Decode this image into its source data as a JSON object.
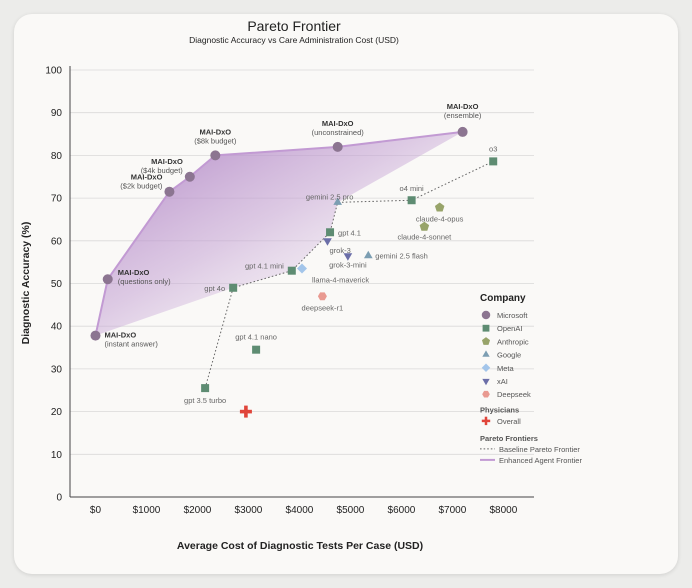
{
  "chart_data": {
    "type": "scatter",
    "title": "Pareto Frontier",
    "subtitle": "Diagnostic Accuracy vs Care Administration Cost (USD)",
    "xlabel": "Average Cost of Diagnostic Tests Per Case (USD)",
    "ylabel": "Diagnostic Accuracy (%)",
    "xlim": [
      -500,
      8600
    ],
    "ylim": [
      0,
      100
    ],
    "x_ticks": [
      0,
      1000,
      2000,
      3000,
      4000,
      5000,
      6000,
      7000,
      8000
    ],
    "x_tick_labels": [
      "$0",
      "$1000",
      "$2000",
      "$3000",
      "$4000",
      "$5000",
      "$6000",
      "$7000",
      "$8000"
    ],
    "y_ticks": [
      0,
      10,
      20,
      30,
      40,
      50,
      60,
      70,
      80,
      90,
      100
    ],
    "grid": "horizontal",
    "legend_position": "right",
    "colors": {
      "Microsoft": "#8c7591",
      "OpenAI": "#5e8c72",
      "Anthropic": "#98a46a",
      "Google": "#7c9eb2",
      "Meta": "#a3c5ea",
      "xAI": "#6b6ea8",
      "Deepseek": "#e99a91",
      "Physicians": "#e0453a",
      "enhanced_frontier": "#c29ad3",
      "fill": "#a97bc0",
      "baseline_frontier": "#666666"
    },
    "points": [
      {
        "label": "MAI-DxO",
        "sub": "(instant answer)",
        "company": "Microsoft",
        "x": 0,
        "y": 37.8
      },
      {
        "label": "MAI-DxO",
        "sub": "(questions only)",
        "company": "Microsoft",
        "x": 240,
        "y": 51
      },
      {
        "label": "MAI-DxO",
        "sub": "($2k budget)",
        "company": "Microsoft",
        "x": 1450,
        "y": 71.5
      },
      {
        "label": "MAI-DxO",
        "sub": "($4k budget)",
        "company": "Microsoft",
        "x": 1850,
        "y": 75
      },
      {
        "label": "MAI-DxO",
        "sub": "($8k budget)",
        "company": "Microsoft",
        "x": 2350,
        "y": 80
      },
      {
        "label": "MAI-DxO",
        "sub": "(unconstrained)",
        "company": "Microsoft",
        "x": 4750,
        "y": 82
      },
      {
        "label": "MAI-DxO",
        "sub": "(ensemble)",
        "company": "Microsoft",
        "x": 7200,
        "y": 85.5
      },
      {
        "label": "o3",
        "company": "OpenAI",
        "x": 7800,
        "y": 78.6
      },
      {
        "label": "o4 mini",
        "company": "OpenAI",
        "x": 6200,
        "y": 69.5
      },
      {
        "label": "gpt 4.1",
        "company": "OpenAI",
        "x": 4600,
        "y": 62
      },
      {
        "label": "gpt 4.1 mini",
        "company": "OpenAI",
        "x": 3850,
        "y": 53
      },
      {
        "label": "gpt 4o",
        "company": "OpenAI",
        "x": 2700,
        "y": 49
      },
      {
        "label": "gpt 4.1 nano",
        "company": "OpenAI",
        "x": 3150,
        "y": 34.5
      },
      {
        "label": "gpt 3.5 turbo",
        "company": "OpenAI",
        "x": 2150,
        "y": 25.5
      },
      {
        "label": "claude-4-opus",
        "company": "Anthropic",
        "x": 6750,
        "y": 67.8
      },
      {
        "label": "claude-4-sonnet",
        "company": "Anthropic",
        "x": 6450,
        "y": 63.3
      },
      {
        "label": "gemini 2.5 pro",
        "company": "Google",
        "x": 4750,
        "y": 69
      },
      {
        "label": "gemini 2.5 flash",
        "company": "Google",
        "x": 5350,
        "y": 56.5
      },
      {
        "label": "llama-4-maverick",
        "company": "Meta",
        "x": 4050,
        "y": 53.5
      },
      {
        "label": "grok-3",
        "company": "xAI",
        "x": 4550,
        "y": 60
      },
      {
        "label": "grok-3-mini",
        "company": "xAI",
        "x": 4950,
        "y": 56.5
      },
      {
        "label": "deepseek-r1",
        "company": "Deepseek",
        "x": 4450,
        "y": 47
      },
      {
        "label": "Overall",
        "company": "Physicians",
        "x": 2950,
        "y": 20
      }
    ],
    "enhanced_frontier": [
      [
        0,
        37.8
      ],
      [
        240,
        51
      ],
      [
        1450,
        71.5
      ],
      [
        1850,
        75
      ],
      [
        2350,
        80
      ],
      [
        4750,
        82
      ],
      [
        7200,
        85.5
      ]
    ],
    "baseline_frontier": [
      [
        2150,
        25.5
      ],
      [
        2700,
        49
      ],
      [
        3850,
        53
      ],
      [
        4600,
        62
      ],
      [
        4750,
        69
      ],
      [
        6200,
        69.5
      ],
      [
        7800,
        78.6
      ]
    ],
    "legend": {
      "title": "Company",
      "companies": [
        {
          "name": "Microsoft",
          "symbol": "circle"
        },
        {
          "name": "OpenAI",
          "symbol": "square"
        },
        {
          "name": "Anthropic",
          "symbol": "pentagon"
        },
        {
          "name": "Google",
          "symbol": "triangle-up"
        },
        {
          "name": "Meta",
          "symbol": "diamond"
        },
        {
          "name": "xAI",
          "symbol": "triangle-down"
        },
        {
          "name": "Deepseek",
          "symbol": "hexagon"
        }
      ],
      "physicians_title": "Physicians",
      "physicians": [
        {
          "name": "Overall",
          "symbol": "cross"
        }
      ],
      "frontiers_title": "Pareto Frontiers",
      "frontiers": [
        {
          "name": "Baseline Pareto Frontier",
          "style": "dotted"
        },
        {
          "name": "Enhanced Agent Frontier",
          "style": "solid"
        }
      ]
    }
  }
}
